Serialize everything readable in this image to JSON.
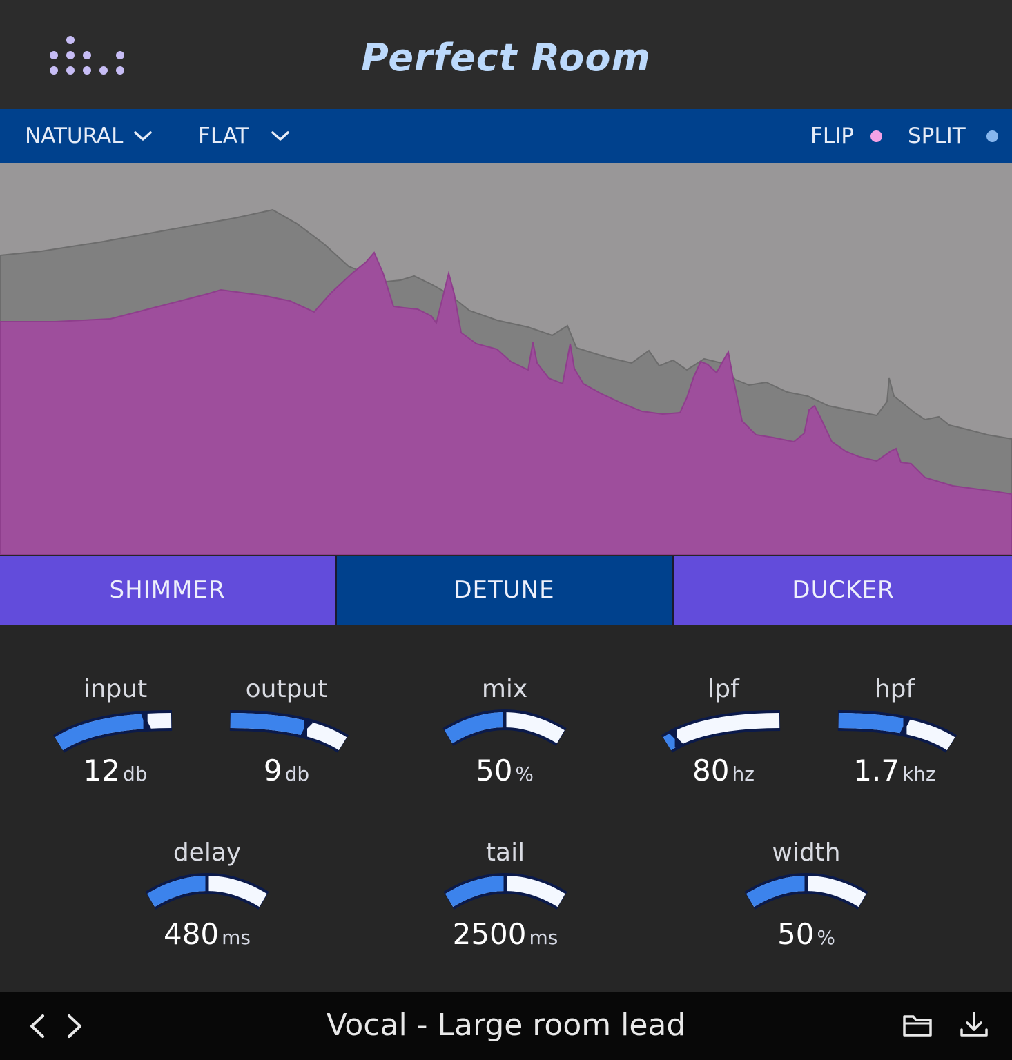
{
  "app": {
    "title": "Perfect Room",
    "logo": "dots-logo-icon",
    "accent": "#bcd9fb"
  },
  "modebar": {
    "mode_select": "NATURAL",
    "eq_select": "FLAT",
    "flip_label": "FLIP",
    "flip_dot_color": "#f3a2e6",
    "split_label": "SPLIT",
    "split_dot_color": "#86b6ee"
  },
  "spectrum": {
    "wet_color": "#9e4e9c",
    "dry_color": "#808080",
    "background": "#999798"
  },
  "tabs": [
    {
      "label": "SHIMMER",
      "selected": false
    },
    {
      "label": "DETUNE",
      "selected": true
    },
    {
      "label": "DUCKER",
      "selected": false
    }
  ],
  "knobs": {
    "input": {
      "label": "input",
      "value": "12",
      "unit": "db",
      "level": 0.82
    },
    "output": {
      "label": "output",
      "value": "9",
      "unit": "db",
      "level": 0.58
    },
    "mix": {
      "label": "mix",
      "value": "50",
      "unit": "%",
      "level": 0.5
    },
    "lpf": {
      "label": "lpf",
      "value": "80",
      "unit": "hz",
      "level": 0.12
    },
    "hpf": {
      "label": "hpf",
      "value": "1.7",
      "unit": "khz",
      "level": 0.5
    },
    "delay": {
      "label": "delay",
      "value": "480",
      "unit": "ms",
      "level": 0.5
    },
    "tail": {
      "label": "tail",
      "value": "2500",
      "unit": "ms",
      "level": 0.5
    },
    "width": {
      "label": "width",
      "value": "50",
      "unit": "%",
      "level": 0.5
    }
  },
  "footer": {
    "preset_name": "Vocal - Large room lead",
    "prev_icon": "chevron-left-icon",
    "next_icon": "chevron-right-icon",
    "folder_icon": "folder-icon",
    "save_icon": "download-icon"
  }
}
